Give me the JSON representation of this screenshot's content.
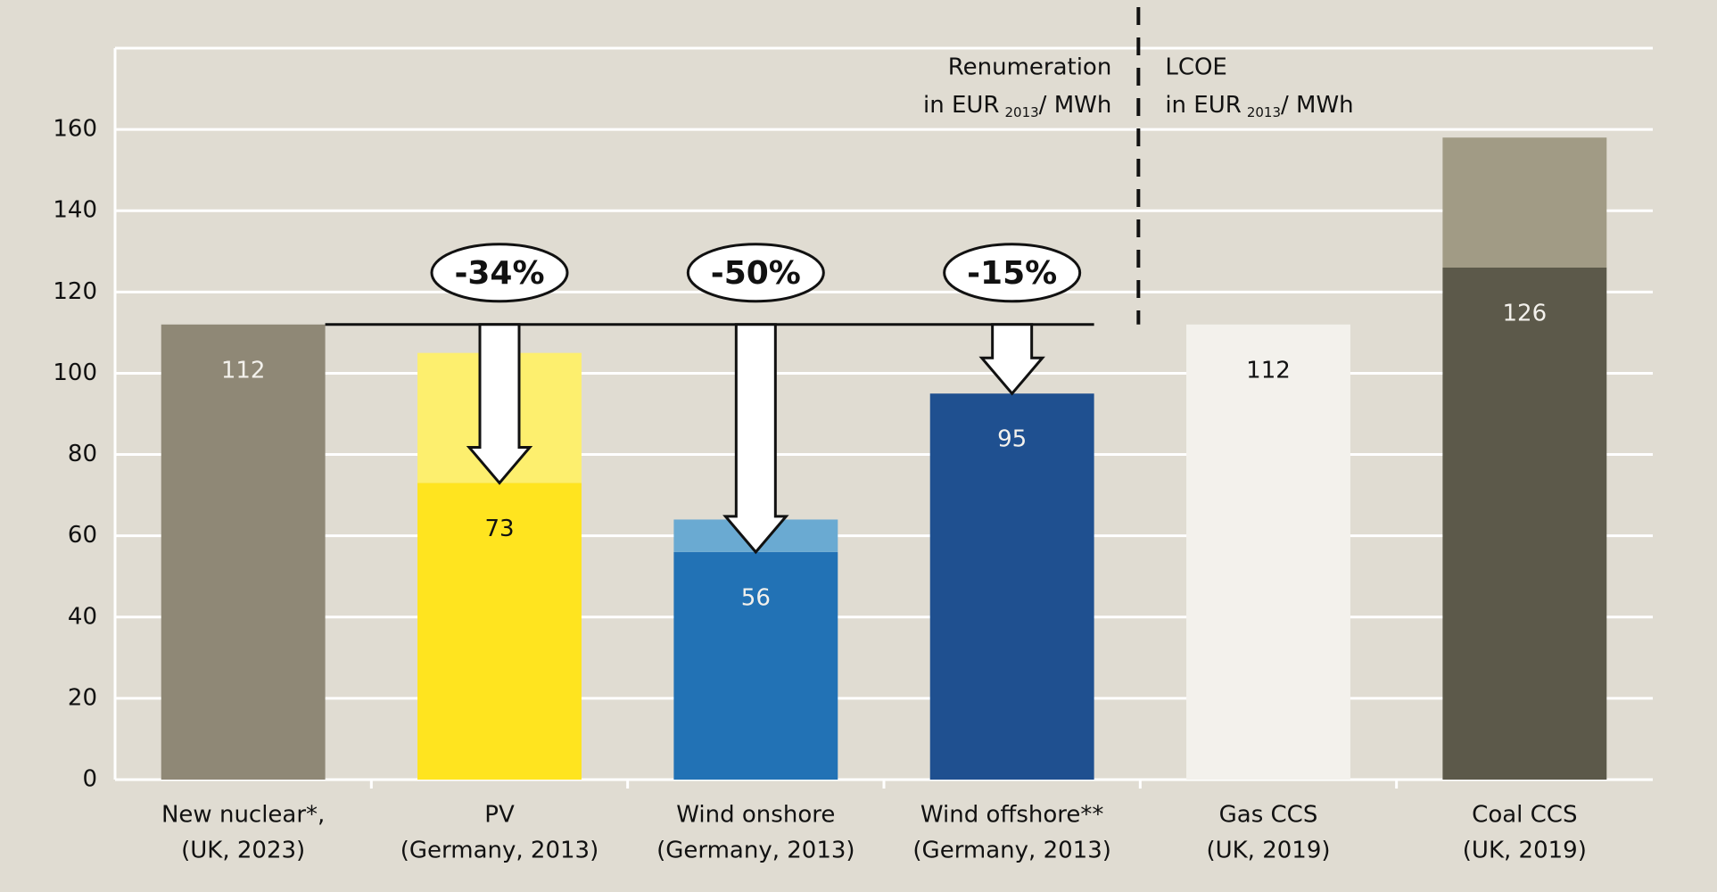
{
  "chart_data": {
    "type": "bar",
    "stacked": true,
    "categories": [
      [
        "New nuclear*,",
        "(UK, 2023)"
      ],
      [
        "PV",
        "(Germany, 2013)"
      ],
      [
        "Wind onshore",
        "(Germany, 2013)"
      ],
      [
        "Wind offshore**",
        "(Germany, 2013)"
      ],
      [
        "Gas CCS",
        "(UK, 2019)"
      ],
      [
        "Coal CCS",
        "(UK, 2019)"
      ]
    ],
    "series": [
      {
        "values": [
          112,
          73,
          56,
          95,
          112,
          126
        ],
        "colors": [
          "#8f8876",
          "#ffe41f",
          "#2272b5",
          "#1f5090",
          "#f3f1ec",
          "#5c594a"
        ],
        "label_colors": [
          "#f3f1ec",
          "#111111",
          "#f3f1ec",
          "#f3f1ec",
          "#111111",
          "#f3f1ec"
        ]
      },
      {
        "values": [
          null,
          32,
          8,
          null,
          null,
          32
        ],
        "colors": [
          "#8f8876",
          "#fdef6e",
          "#6aaad2",
          "#1f5090",
          "#f3f1ec",
          "#a19b85"
        ]
      }
    ],
    "ylim": [
      0,
      180
    ],
    "yticks": [
      0,
      20,
      40,
      60,
      80,
      100,
      120,
      140,
      160
    ],
    "grid": true,
    "reference_value": 112,
    "arrows": [
      {
        "category": 1,
        "label": "-34%"
      },
      {
        "category": 2,
        "label": "-50%"
      },
      {
        "category": 3,
        "label": "-15%"
      }
    ],
    "annotations": [
      {
        "lines": [
          "Renumeration",
          "in EUR"
        ],
        "sub": "2013",
        "tail": "/ MWh"
      },
      {
        "lines": [
          "LCOE",
          "in EUR"
        ],
        "sub": "2013",
        "tail": "/ MWh"
      }
    ]
  }
}
